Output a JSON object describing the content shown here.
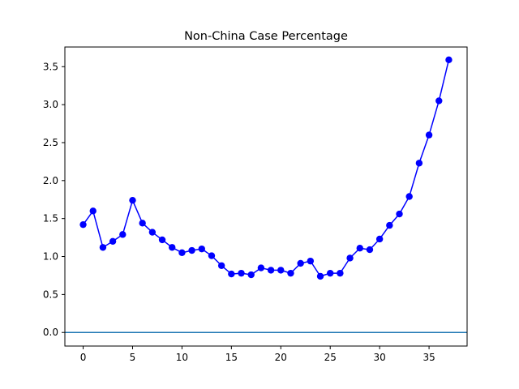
{
  "chart_data": {
    "type": "line",
    "title": "Non-China Case Percentage",
    "xlabel": "",
    "ylabel": "",
    "xlim": [
      -1.85,
      38.85
    ],
    "ylim": [
      -0.179,
      3.759
    ],
    "x_ticks": [
      0,
      5,
      10,
      15,
      20,
      25,
      30,
      35
    ],
    "y_ticks": [
      0.0,
      0.5,
      1.0,
      1.5,
      2.0,
      2.5,
      3.0,
      3.5
    ],
    "grid": false,
    "reference_line": {
      "y": 0,
      "color": "#1f77b4"
    },
    "series": [
      {
        "color": "#0000ff",
        "marker": "circle",
        "x": [
          0,
          1,
          2,
          3,
          4,
          5,
          6,
          7,
          8,
          9,
          10,
          11,
          12,
          13,
          14,
          15,
          16,
          17,
          18,
          19,
          20,
          21,
          22,
          23,
          24,
          25,
          26,
          27,
          28,
          29,
          30,
          31,
          32,
          33,
          34,
          35,
          36,
          37
        ],
        "values": [
          1.42,
          1.6,
          1.12,
          1.2,
          1.29,
          1.74,
          1.44,
          1.32,
          1.22,
          1.12,
          1.05,
          1.08,
          1.1,
          1.01,
          0.88,
          0.77,
          0.78,
          0.76,
          0.85,
          0.82,
          0.82,
          0.78,
          0.91,
          0.94,
          0.74,
          0.78,
          0.78,
          0.98,
          1.11,
          1.09,
          1.23,
          1.41,
          1.56,
          1.79,
          2.23,
          2.6,
          3.05,
          3.59
        ]
      }
    ]
  }
}
